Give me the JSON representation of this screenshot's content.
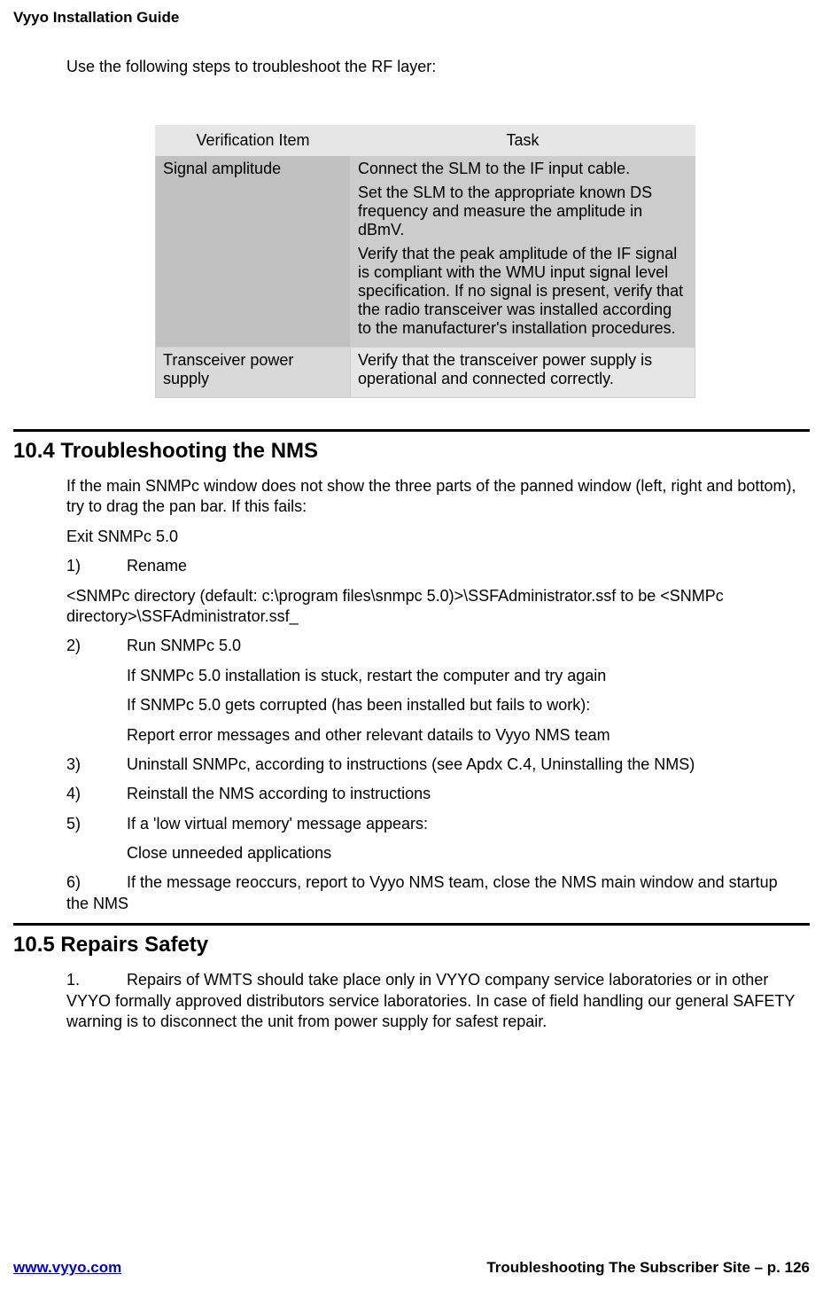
{
  "doc": {
    "header": "Vyyo Installation Guide",
    "intro": "Use the following steps to troubleshoot the RF layer:"
  },
  "table": {
    "headers": [
      "Verification Item",
      "Task"
    ],
    "rows": [
      {
        "item": "Signal amplitude",
        "tasks": [
          "Connect the SLM to the IF input cable.",
          "Set the SLM to the appropriate known DS frequency and measure the amplitude in dBmV.",
          "Verify that the peak amplitude of the IF signal is compliant with the WMU input signal level specification. If no signal is present, verify that the radio transceiver was installed according to the manufacturer's installation procedures."
        ]
      },
      {
        "item": "Transceiver power supply",
        "tasks": [
          "Verify that the transceiver power supply is operational and connected correctly."
        ]
      }
    ]
  },
  "section_104": {
    "heading": "10.4 Troubleshooting the NMS",
    "p1": "If the main SNMPc window does not show the three parts of the panned window (left, right and bottom), try to drag the pan bar. If this fails:",
    "p2": "Exit SNMPc 5.0",
    "step1_num": "1)",
    "step1_label": "Rename",
    "step1_body": "<SNMPc directory (default: c:\\program files\\snmpc 5.0)>\\SSFAdministrator.ssf to be <SNMPc directory>\\SSFAdministrator.ssf_",
    "step2_num": "2)",
    "step2_label": "Run SNMPc 5.0",
    "step2_sub1": "If SNMPc 5.0 installation is stuck, restart the computer and try again",
    "step2_sub2": "If SNMPc 5.0 gets corrupted (has been installed but fails to work):",
    "step2_sub3": "Report error messages and other relevant datails to Vyyo NMS team",
    "step3_num": "3)",
    "step3_label": "Uninstall SNMPc, according to instructions (see Apdx C.4, Uninstalling the NMS)",
    "step4_num": "4)",
    "step4_label": "Reinstall the NMS according to instructions",
    "step5_num": "5)",
    "step5_label": "If a 'low virtual memory' message appears:",
    "step5_sub1": "Close unneeded applications",
    "step6_num": "6)",
    "step6_label": "If the message reoccurs, report to Vyyo NMS team, close the NMS main window and startup the NMS"
  },
  "section_105": {
    "heading": "10.5 Repairs Safety",
    "step1_num": "1.",
    "step1_label": "Repairs of WMTS should take place only in VYYO company service laboratories or in other VYYO formally approved distributors service laboratories. In case of field handling our general SAFETY warning is to disconnect the unit from power supply for safest repair."
  },
  "footer": {
    "link": "www.vyyo.com",
    "page": "Troubleshooting The Subscriber Site – p. 126"
  }
}
